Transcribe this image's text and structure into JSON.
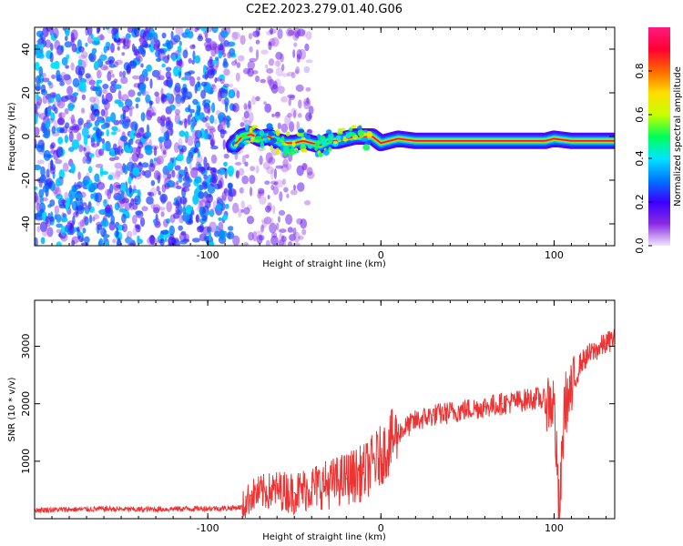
{
  "title": "C2E2.2023.279.01.40.G06",
  "chart_data": [
    {
      "type": "heatmap",
      "xlabel": "Height of straight line (km)",
      "ylabel": "Frequency (Hz)",
      "xlim": [
        -200,
        135
      ],
      "ylim": [
        -50,
        50
      ],
      "xticks": [
        -100,
        0,
        100
      ],
      "yticks": [
        -40,
        -20,
        0,
        20,
        40
      ],
      "colorbar": {
        "label": "Normalized spectral amplitude",
        "range": [
          0,
          1
        ],
        "ticks": [
          0.0,
          0.2,
          0.4,
          0.6,
          0.8
        ],
        "colormap": [
          "#f2e6ff",
          "#8a2be2",
          "#3a00ff",
          "#0077ff",
          "#00e5ff",
          "#00ff55",
          "#c8ff00",
          "#ffdd00",
          "#ff6600",
          "#ff0033",
          "#ff1a80"
        ]
      },
      "ridge": {
        "x": [
          -85,
          -80,
          -75,
          -70,
          -65,
          -60,
          -55,
          -50,
          -45,
          -40,
          -35,
          -30,
          -25,
          -20,
          -15,
          -10,
          -5,
          0,
          5,
          10,
          20,
          40,
          60,
          80,
          95,
          100,
          110,
          120,
          135
        ],
        "frequency": [
          -4,
          0,
          1,
          -1,
          0,
          -2,
          -3,
          -3,
          -2,
          -3,
          -4,
          -2,
          -2,
          -1,
          0,
          0,
          0,
          -3,
          -2,
          -1,
          -2,
          -2,
          -2,
          -2,
          -2,
          -1,
          -2,
          -2,
          -2
        ]
      }
    },
    {
      "type": "line",
      "xlabel": "Height of straight line (km)",
      "ylabel": "SNR (10 * v/v)",
      "xlim": [
        -200,
        135
      ],
      "ylim": [
        0,
        3800
      ],
      "xticks": [
        -100,
        0,
        100
      ],
      "yticks": [
        1000,
        2000,
        3000
      ],
      "color": "#ee3333",
      "series": [
        {
          "x": [
            -200,
            -180,
            -160,
            -140,
            -120,
            -100,
            -90,
            -80,
            -75,
            -70,
            -60,
            -50,
            -40,
            -30,
            -20,
            -10,
            0,
            10,
            20,
            30,
            40,
            50,
            60,
            70,
            80,
            90,
            100,
            103,
            106,
            110,
            115,
            120,
            125,
            130,
            135
          ],
          "values": [
            150,
            160,
            170,
            160,
            170,
            180,
            180,
            200,
            400,
            450,
            500,
            450,
            550,
            600,
            700,
            800,
            1100,
            1500,
            1700,
            1800,
            1850,
            1900,
            1950,
            2000,
            2050,
            2100,
            2000,
            0,
            2000,
            2150,
            2700,
            2850,
            2950,
            3050,
            3150
          ]
        }
      ]
    }
  ]
}
